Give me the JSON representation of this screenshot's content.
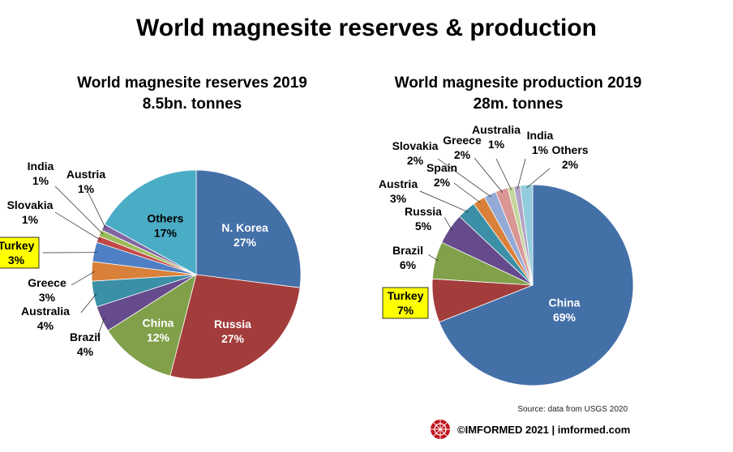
{
  "title": "World magnesite reserves & production",
  "source": "Source: data from USGS 2020",
  "footer": "©IMFORMED 2021  |  imformed.com",
  "colors": {
    "highlight": "#ffff00"
  },
  "chart_data": [
    {
      "type": "pie",
      "title": "World magnesite reserves 2019",
      "subtitle": "8.5bn. tonnes",
      "slices": [
        {
          "label": "N. Korea",
          "value": 27,
          "pct": "27%",
          "color": "#4470a8"
        },
        {
          "label": "Russia",
          "value": 27,
          "pct": "27%",
          "color": "#a33d3b"
        },
        {
          "label": "China",
          "value": 12,
          "pct": "12%",
          "color": "#80a04a"
        },
        {
          "label": "Brazil",
          "value": 4,
          "pct": "4%",
          "color": "#654b8c"
        },
        {
          "label": "Australia",
          "value": 4,
          "pct": "4%",
          "color": "#3b8fa6"
        },
        {
          "label": "Greece",
          "value": 3,
          "pct": "3%",
          "color": "#d9813b"
        },
        {
          "label": "Turkey",
          "value": 3,
          "pct": "3%",
          "color": "#4f7fc4",
          "highlight": true
        },
        {
          "label": "Slovakia",
          "value": 1,
          "pct": "1%",
          "color": "#c24a47"
        },
        {
          "label": "India",
          "value": 1,
          "pct": "1%",
          "color": "#9bbb59"
        },
        {
          "label": "Austria",
          "value": 1,
          "pct": "1%",
          "color": "#8064a2"
        },
        {
          "label": "Others",
          "value": 17,
          "pct": "17%",
          "color": "#4bacc6"
        }
      ]
    },
    {
      "type": "pie",
      "title": "World magnesite production 2019",
      "subtitle": "28m. tonnes",
      "slices": [
        {
          "label": "China",
          "value": 69,
          "pct": "69%",
          "color": "#4470a8"
        },
        {
          "label": "Turkey",
          "value": 7,
          "pct": "7%",
          "color": "#a33d3b",
          "highlight": true
        },
        {
          "label": "Brazil",
          "value": 6,
          "pct": "6%",
          "color": "#80a04a"
        },
        {
          "label": "Russia",
          "value": 5,
          "pct": "5%",
          "color": "#654b8c"
        },
        {
          "label": "Austria",
          "value": 3,
          "pct": "3%",
          "color": "#3b8fa6"
        },
        {
          "label": "Spain",
          "value": 2,
          "pct": "2%",
          "color": "#d9813b"
        },
        {
          "label": "Slovakia",
          "value": 2,
          "pct": "2%",
          "color": "#94aad6"
        },
        {
          "label": "Greece",
          "value": 2,
          "pct": "2%",
          "color": "#d99694"
        },
        {
          "label": "Australia",
          "value": 1,
          "pct": "1%",
          "color": "#c3d69b"
        },
        {
          "label": "India",
          "value": 1,
          "pct": "1%",
          "color": "#b2a2c7"
        },
        {
          "label": "Others",
          "value": 2,
          "pct": "2%",
          "color": "#93cddd"
        }
      ]
    }
  ]
}
